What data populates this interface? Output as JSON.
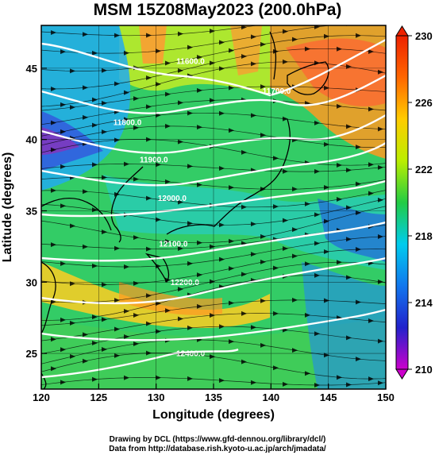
{
  "title": "MSM 15Z08May2023 (200.0hPa)",
  "axes": {
    "xlabel": "Longitude (degrees)",
    "ylabel": "Latitude  (degrees)",
    "lon_range": [
      120,
      150
    ],
    "lat_range": [
      22.5,
      48
    ],
    "lon_ticks": [
      "120",
      "125",
      "130",
      "135",
      "140",
      "145",
      "150"
    ],
    "lat_ticks": [
      "25",
      "30",
      "35",
      "40",
      "45"
    ]
  },
  "colorbar": {
    "range": [
      210,
      230
    ],
    "ticks": [
      "230",
      "226",
      "222",
      "218",
      "214",
      "210"
    ],
    "colors": [
      "#cc00cc",
      "#2222cc",
      "#1177ee",
      "#00ccee",
      "#22cc44",
      "#bbee00",
      "#ffcc00",
      "#ff6600",
      "#ee2200"
    ]
  },
  "contours": {
    "line_color": "#ffffff",
    "labels": [
      {
        "text": "11600.0",
        "lon": 133.0,
        "lat": 45.3
      },
      {
        "text": "11700.0",
        "lon": 140.5,
        "lat": 43.2
      },
      {
        "text": "11800.0",
        "lon": 127.5,
        "lat": 41.0
      },
      {
        "text": "11900.0",
        "lon": 129.8,
        "lat": 38.4
      },
      {
        "text": "12000.0",
        "lon": 131.4,
        "lat": 35.7
      },
      {
        "text": "12100.0",
        "lon": 131.5,
        "lat": 32.5
      },
      {
        "text": "12200.0",
        "lon": 132.5,
        "lat": 29.8
      },
      {
        "text": "12400.0",
        "lon": 133.0,
        "lat": 24.8
      }
    ]
  },
  "credits": [
    "Drawing by DCL (https://www.gfd-dennou.org/library/dcl/)",
    "Data from http://database.rish.kyoto-u.ac.jp/arch/jmadata/"
  ]
}
